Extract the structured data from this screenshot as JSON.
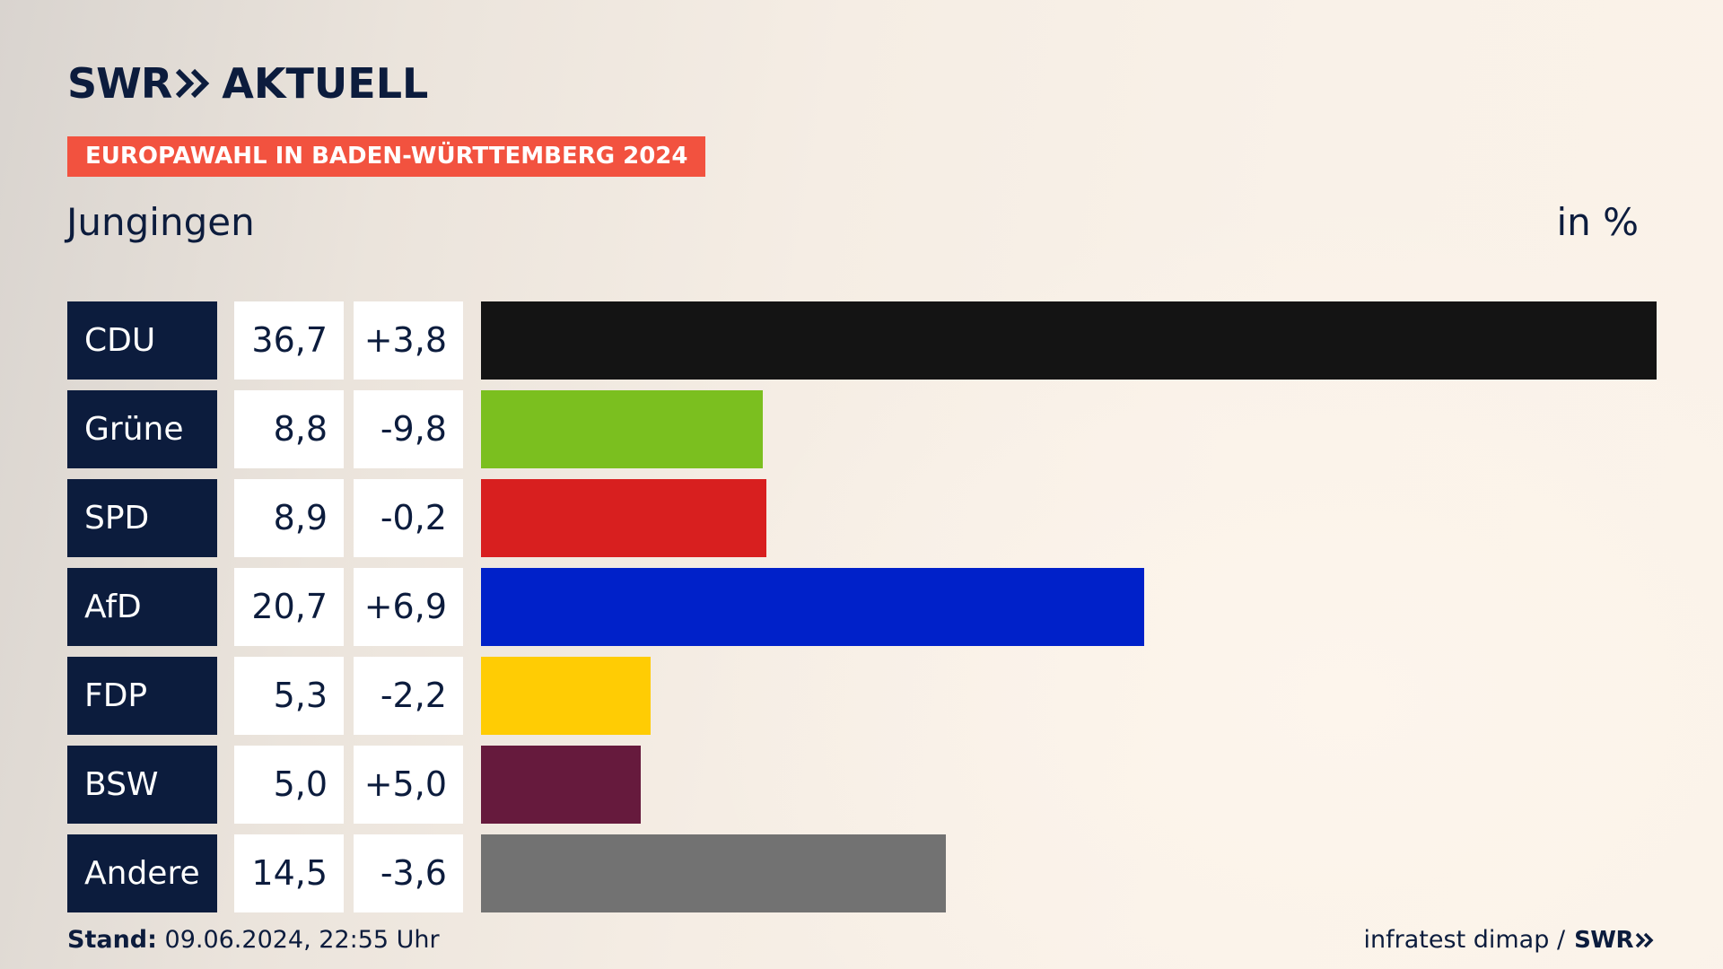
{
  "brand": {
    "logo_text": "SWR",
    "logo_suffix": "AKTUELL",
    "icon": "double-chevron-right-icon",
    "colors": {
      "navy": "#0c1c3d",
      "kicker": "#f2523f"
    }
  },
  "header": {
    "kicker": "EUROPAWAHL IN BADEN-WÜRTTEMBERG 2024",
    "place": "Jungingen",
    "unit": "in %"
  },
  "footer": {
    "stand_label": "Stand:",
    "stand_value": "09.06.2024, 22:55 Uhr",
    "source": "infratest dimap /",
    "source_logo": "SWR"
  },
  "chart_data": {
    "type": "bar",
    "orientation": "horizontal",
    "categories": [
      "CDU",
      "Grüne",
      "SPD",
      "AfD",
      "FDP",
      "BSW",
      "Andere"
    ],
    "values": [
      36.7,
      8.8,
      8.9,
      20.7,
      5.3,
      5.0,
      14.5
    ],
    "value_labels": [
      "36,7",
      "8,8",
      "8,9",
      "20,7",
      "5,3",
      "5,0",
      "14,5"
    ],
    "diffs": [
      3.8,
      -9.8,
      -0.2,
      6.9,
      -2.2,
      5.0,
      -3.6
    ],
    "diff_labels": [
      "+3,8",
      "-9,8",
      "-0,2",
      "+6,9",
      "-2,2",
      "+5,0",
      "-3,6"
    ],
    "colors": [
      "#141414",
      "#7bbf1f",
      "#d81f1f",
      "#0021c9",
      "#ffcc04",
      "#661a3d",
      "#727272"
    ],
    "xlim": [
      0,
      36.7
    ],
    "grid": false,
    "legend": "none"
  }
}
